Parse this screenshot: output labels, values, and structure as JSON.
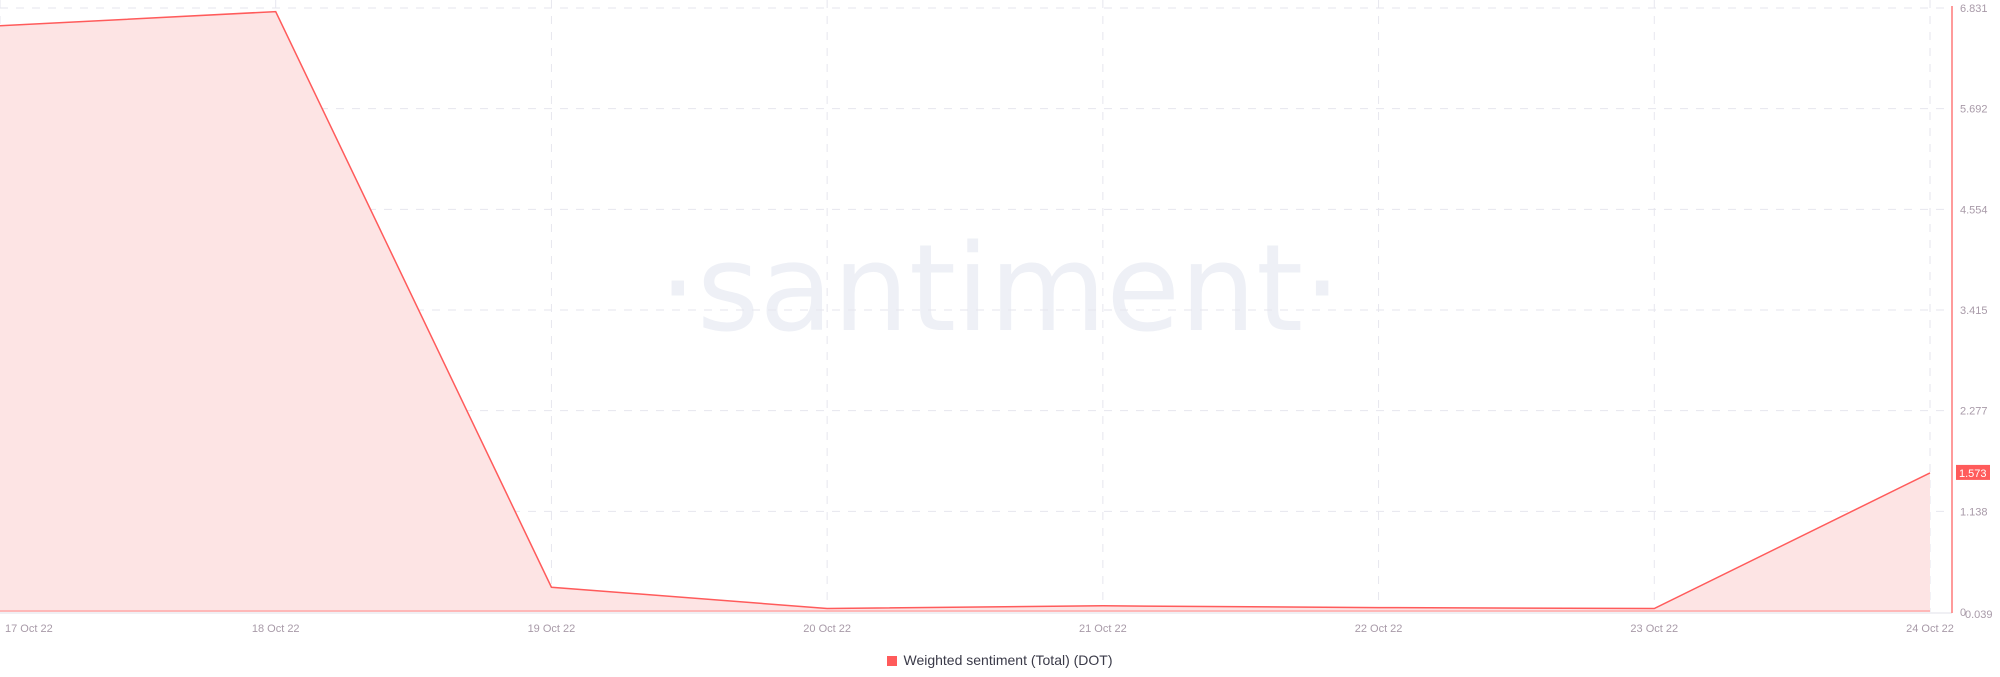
{
  "chart_data": {
    "type": "area",
    "title": "",
    "xlabel": "",
    "ylabel": "",
    "x": [
      "17 Oct 22",
      "18 Oct 22",
      "19 Oct 22",
      "20 Oct 22",
      "21 Oct 22",
      "22 Oct 22",
      "23 Oct 22",
      "24 Oct 22"
    ],
    "series": [
      {
        "name": "Weighted sentiment (Total) (DOT)",
        "values": [
          6.63,
          6.79,
          0.28,
          0.04,
          0.07,
          0.05,
          0.039,
          1.573
        ],
        "color": "#ff5b5b"
      }
    ],
    "yticks": [
      "0",
      "1.138",
      "2.277",
      "3.415",
      "4.554",
      "5.692",
      "6.831"
    ],
    "ylim": [
      0,
      6.831
    ],
    "y_min_label": "0.039",
    "current_value_label": "1.573",
    "y_axis_side": "right",
    "grid": true,
    "legend_placement": "bottom-center",
    "watermark": "santiment"
  },
  "colors": {
    "line": "#ff5b5b",
    "fill": "#fde4e4",
    "grid": "#e6e6ee",
    "watermark": "#eef0f6"
  }
}
